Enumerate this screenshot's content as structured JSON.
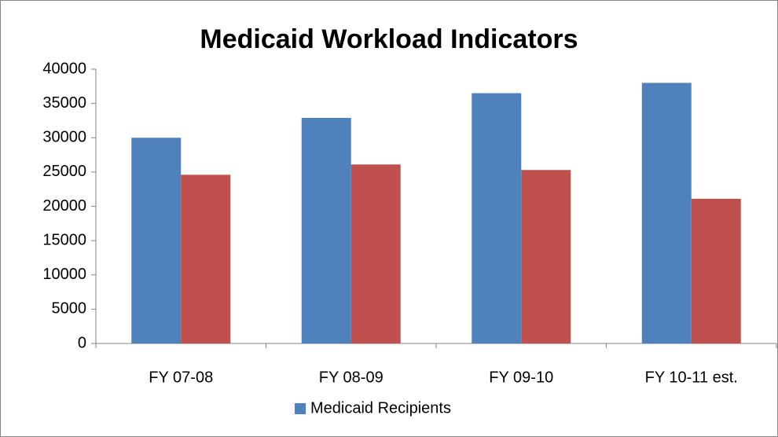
{
  "chart_data": {
    "type": "bar",
    "title": "Medicaid Workload Indicators",
    "categories": [
      "FY 07-08",
      "FY 08-09",
      "FY 09-10",
      "FY 10-11 est."
    ],
    "series": [
      {
        "name": "Medicaid Recipients",
        "color": "#4f81bd",
        "values": [
          30000,
          32900,
          36500,
          38000
        ]
      },
      {
        "color": "#c0504d",
        "values": [
          24600,
          26100,
          25300,
          21100
        ]
      }
    ],
    "ylim": [
      0,
      40000
    ],
    "yticks": [
      0,
      5000,
      10000,
      15000,
      20000,
      25000,
      30000,
      35000,
      40000
    ],
    "grid": false,
    "legend": "bottom"
  }
}
